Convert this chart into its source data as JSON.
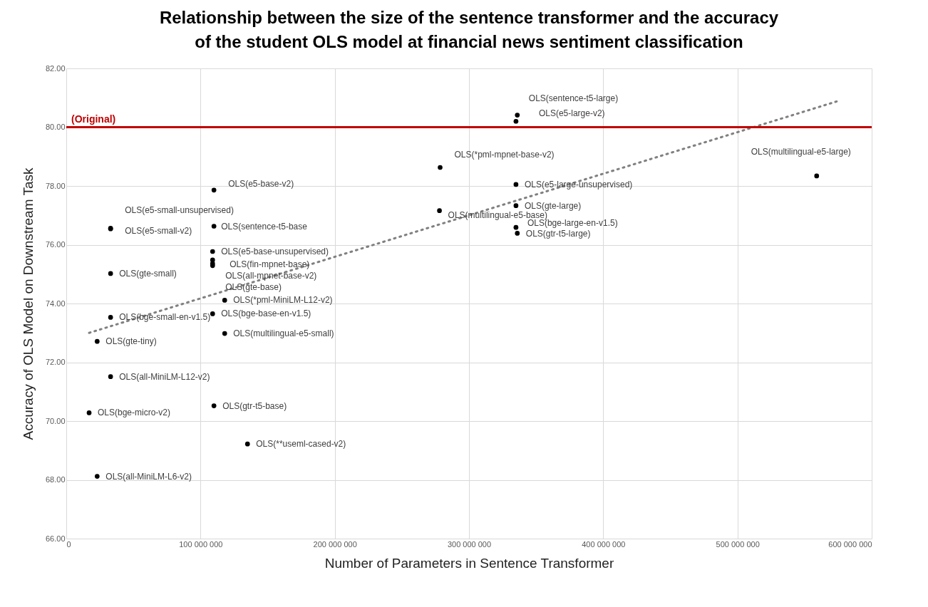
{
  "chart_data": {
    "type": "scatter",
    "title": "Relationship between the size of the sentence transformer and the accuracy\nof the student OLS model at financial news sentiment classification",
    "xlabel": "Number of Parameters  in Sentence Transformer",
    "ylabel": "Accuracy of OLS Model on Downstream Task",
    "xlim": [
      0,
      600000000
    ],
    "xticks": [
      0,
      {
        "value": 100000000,
        "label": "100 000 000"
      },
      {
        "value": 200000000,
        "label": "200 000 000"
      },
      {
        "value": 300000000,
        "label": "300 000 000"
      },
      {
        "value": 400000000,
        "label": "400 000 000"
      },
      {
        "value": 500000000,
        "label": "500 000 000"
      },
      {
        "value": 600000000,
        "label": "600 000 000"
      }
    ],
    "ylim": [
      66,
      82
    ],
    "yticks": [
      {
        "value": 66,
        "label": "66.00"
      },
      {
        "value": 68,
        "label": "68.00"
      },
      {
        "value": 70,
        "label": "70.00"
      },
      {
        "value": 72,
        "label": "72.00"
      },
      {
        "value": 74,
        "label": "74.00"
      },
      {
        "value": 76,
        "label": "76.00"
      },
      {
        "value": 78,
        "label": "78.00"
      },
      {
        "value": 80,
        "label": "80.00"
      },
      {
        "value": 82,
        "label": "82.00"
      }
    ],
    "grid": true,
    "marker": "circle",
    "series": [
      {
        "color": "#000000",
        "x": [
          336000000,
          335000000,
          278500000,
          559000000,
          335000000,
          335000000,
          278000000,
          335000000,
          336000000,
          110000000,
          33000000,
          33000000,
          110000000,
          33000000,
          109000000,
          109000000,
          109000000,
          109000000,
          118000000,
          33000000,
          109000000,
          118000000,
          23000000,
          33000000,
          17000000,
          110000000,
          135000000,
          23000000
        ],
        "values": [
          80.41,
          80.2,
          78.63,
          78.34,
          78.05,
          77.33,
          77.16,
          76.59,
          76.39,
          77.86,
          76.56,
          76.54,
          76.63,
          75.02,
          75.77,
          75.48,
          75.36,
          75.29,
          74.11,
          73.53,
          73.65,
          72.98,
          72.71,
          71.51,
          70.28,
          70.52,
          69.22,
          68.12
        ]
      },
      {
        "type": "line",
        "color": "#808080",
        "line_style": "dotted",
        "marker": "none",
        "x": [
          17000000,
          575000000
        ],
        "values": [
          73.0,
          80.89
        ]
      }
    ],
    "ref_lines": [
      {
        "axis": "y",
        "value": 80,
        "label": "(Original)",
        "color": "#c00000"
      }
    ],
    "annotations": [
      {
        "text": "OLS(sentence-t5-large)",
        "x": 336000000,
        "y": 80.41
      },
      {
        "text": "OLS(e5-large-v2)",
        "x": 335000000,
        "y": 80.2
      },
      {
        "text": "OLS(*pml-mpnet-base-v2)",
        "x": 278500000,
        "y": 78.63
      },
      {
        "text": "OLS(multilingual-e5-large)",
        "x": 559000000,
        "y": 78.34
      },
      {
        "text": "OLS(e5-large-unsupervised)",
        "x": 335000000,
        "y": 78.05
      },
      {
        "text": "OLS(gte-large)",
        "x": 335000000,
        "y": 77.33
      },
      {
        "text": "OLS(multilingual-e5-base)",
        "x": 278000000,
        "y": 77.16
      },
      {
        "text": "OLS(bge-large-en-v1.5)",
        "x": 335000000,
        "y": 76.59
      },
      {
        "text": "OLS(gtr-t5-large)",
        "x": 336000000,
        "y": 76.39
      },
      {
        "text": "OLS(e5-base-v2)",
        "x": 110000000,
        "y": 77.86
      },
      {
        "text": "OLS(e5-small-unsupervised)",
        "x": 33000000,
        "y": 76.56
      },
      {
        "text": "OLS(e5-small-v2)",
        "x": 33000000,
        "y": 76.54
      },
      {
        "text": "OLS(sentence-t5-base",
        "x": 110000000,
        "y": 76.63
      },
      {
        "text": "OLS(gte-small)",
        "x": 33000000,
        "y": 75.02
      },
      {
        "text": "OLS(e5-base-unsupervised)",
        "x": 109000000,
        "y": 75.77
      },
      {
        "text": "OLS(fin-mpnet-base)",
        "x": 109000000,
        "y": 75.48
      },
      {
        "text": "OLS(all-mpnet-base-v2)",
        "x": 109000000,
        "y": 75.36
      },
      {
        "text": "OLS(gte-base)",
        "x": 109000000,
        "y": 75.29
      },
      {
        "text": "OLS(*pml-MiniLM-L12-v2)",
        "x": 118000000,
        "y": 74.11
      },
      {
        "text": "OLS(bge-small-en-v1.5)",
        "x": 33000000,
        "y": 73.53
      },
      {
        "text": "OLS(bge-base-en-v1.5)",
        "x": 109000000,
        "y": 73.65
      },
      {
        "text": "OLS(multilingual-e5-small)",
        "x": 118000000,
        "y": 72.98
      },
      {
        "text": "OLS(gte-tiny)",
        "x": 23000000,
        "y": 72.71
      },
      {
        "text": "OLS(all-MiniLM-L12-v2)",
        "x": 33000000,
        "y": 71.51
      },
      {
        "text": "OLS(bge-micro-v2)",
        "x": 17000000,
        "y": 70.28
      },
      {
        "text": "OLS(gtr-t5-base)",
        "x": 110000000,
        "y": 70.52
      },
      {
        "text": "OLS(**useml-cased-v2)",
        "x": 135000000,
        "y": 69.22
      },
      {
        "text": "OLS(all-MiniLM-L6-v2)",
        "x": 23000000,
        "y": 68.12
      }
    ]
  }
}
